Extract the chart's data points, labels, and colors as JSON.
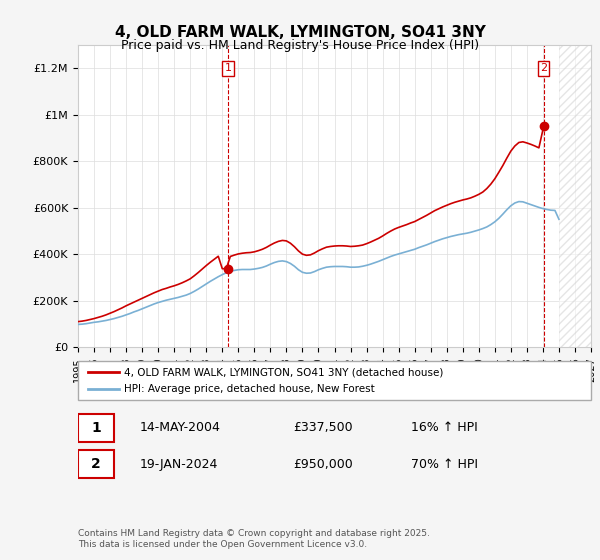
{
  "title": "4, OLD FARM WALK, LYMINGTON, SO41 3NY",
  "subtitle": "Price paid vs. HM Land Registry's House Price Index (HPI)",
  "x_start": 1995.0,
  "x_end": 2027.0,
  "ylim": [
    0,
    1300000
  ],
  "yticks": [
    0,
    200000,
    400000,
    600000,
    800000,
    1000000,
    1200000
  ],
  "ytick_labels": [
    "£0",
    "£200K",
    "£400K",
    "£600K",
    "£800K",
    "£1M",
    "£1.2M"
  ],
  "xticks": [
    1995,
    1996,
    1997,
    1998,
    1999,
    2000,
    2001,
    2002,
    2003,
    2004,
    2005,
    2006,
    2007,
    2008,
    2009,
    2010,
    2011,
    2012,
    2013,
    2014,
    2015,
    2016,
    2017,
    2018,
    2019,
    2020,
    2021,
    2022,
    2023,
    2024,
    2025,
    2026,
    2027
  ],
  "sale1_x": 2004.37,
  "sale1_y": 337500,
  "sale1_label": "1",
  "sale2_x": 2024.05,
  "sale2_y": 950000,
  "sale2_label": "2",
  "red_line_color": "#cc0000",
  "blue_line_color": "#7ab0d4",
  "background_color": "#f5f5f5",
  "plot_bg_color": "#ffffff",
  "grid_color": "#dddddd",
  "legend_label_red": "4, OLD FARM WALK, LYMINGTON, SO41 3NY (detached house)",
  "legend_label_blue": "HPI: Average price, detached house, New Forest",
  "info1_num": "1",
  "info1_date": "14-MAY-2004",
  "info1_price": "£337,500",
  "info1_hpi": "16% ↑ HPI",
  "info2_num": "2",
  "info2_date": "19-JAN-2024",
  "info2_price": "£950,000",
  "info2_hpi": "70% ↑ HPI",
  "footer": "Contains HM Land Registry data © Crown copyright and database right 2025.\nThis data is licensed under the Open Government Licence v3.0.",
  "hpi_years": [
    1995.0,
    1995.25,
    1995.5,
    1995.75,
    1996.0,
    1996.25,
    1996.5,
    1996.75,
    1997.0,
    1997.25,
    1997.5,
    1997.75,
    1998.0,
    1998.25,
    1998.5,
    1998.75,
    1999.0,
    1999.25,
    1999.5,
    1999.75,
    2000.0,
    2000.25,
    2000.5,
    2000.75,
    2001.0,
    2001.25,
    2001.5,
    2001.75,
    2002.0,
    2002.25,
    2002.5,
    2002.75,
    2003.0,
    2003.25,
    2003.5,
    2003.75,
    2004.0,
    2004.25,
    2004.5,
    2004.75,
    2005.0,
    2005.25,
    2005.5,
    2005.75,
    2006.0,
    2006.25,
    2006.5,
    2006.75,
    2007.0,
    2007.25,
    2007.5,
    2007.75,
    2008.0,
    2008.25,
    2008.5,
    2008.75,
    2009.0,
    2009.25,
    2009.5,
    2009.75,
    2010.0,
    2010.25,
    2010.5,
    2010.75,
    2011.0,
    2011.25,
    2011.5,
    2011.75,
    2012.0,
    2012.25,
    2012.5,
    2012.75,
    2013.0,
    2013.25,
    2013.5,
    2013.75,
    2014.0,
    2014.25,
    2014.5,
    2014.75,
    2015.0,
    2015.25,
    2015.5,
    2015.75,
    2016.0,
    2016.25,
    2016.5,
    2016.75,
    2017.0,
    2017.25,
    2017.5,
    2017.75,
    2018.0,
    2018.25,
    2018.5,
    2018.75,
    2019.0,
    2019.25,
    2019.5,
    2019.75,
    2020.0,
    2020.25,
    2020.5,
    2020.75,
    2021.0,
    2021.25,
    2021.5,
    2021.75,
    2022.0,
    2022.25,
    2022.5,
    2022.75,
    2023.0,
    2023.25,
    2023.5,
    2023.75,
    2024.0,
    2024.25,
    2024.5,
    2024.75,
    2025.0
  ],
  "hpi_values": [
    98000,
    99000,
    101000,
    104000,
    107000,
    109000,
    112000,
    115000,
    119000,
    123000,
    128000,
    133000,
    139000,
    145000,
    152000,
    158000,
    165000,
    172000,
    179000,
    186000,
    192000,
    197000,
    202000,
    206000,
    210000,
    214000,
    219000,
    224000,
    231000,
    240000,
    250000,
    261000,
    272000,
    283000,
    293000,
    303000,
    312000,
    320000,
    326000,
    330000,
    333000,
    334000,
    334000,
    334000,
    336000,
    339000,
    343000,
    349000,
    357000,
    364000,
    369000,
    371000,
    368000,
    360000,
    348000,
    333000,
    322000,
    318000,
    319000,
    325000,
    333000,
    339000,
    344000,
    346000,
    347000,
    347000,
    347000,
    346000,
    344000,
    344000,
    345000,
    348000,
    352000,
    357000,
    363000,
    369000,
    376000,
    383000,
    390000,
    396000,
    401000,
    406000,
    411000,
    416000,
    421000,
    428000,
    434000,
    440000,
    447000,
    454000,
    460000,
    466000,
    471000,
    476000,
    480000,
    484000,
    487000,
    490000,
    494000,
    499000,
    504000,
    510000,
    517000,
    527000,
    539000,
    554000,
    572000,
    591000,
    608000,
    620000,
    626000,
    625000,
    619000,
    613000,
    607000,
    601000,
    596000,
    592000,
    589000,
    588000,
    550000
  ],
  "red_years": [
    1995.0,
    1995.25,
    1995.5,
    1995.75,
    1996.0,
    1996.25,
    1996.5,
    1996.75,
    1997.0,
    1997.25,
    1997.5,
    1997.75,
    1998.0,
    1998.25,
    1998.5,
    1998.75,
    1999.0,
    1999.25,
    1999.5,
    1999.75,
    2000.0,
    2000.25,
    2000.5,
    2000.75,
    2001.0,
    2001.25,
    2001.5,
    2001.75,
    2002.0,
    2002.25,
    2002.5,
    2002.75,
    2003.0,
    2003.25,
    2003.5,
    2003.75,
    2004.0,
    2004.25,
    2004.5,
    2004.75,
    2005.0,
    2005.25,
    2005.5,
    2005.75,
    2006.0,
    2006.25,
    2006.5,
    2006.75,
    2007.0,
    2007.25,
    2007.5,
    2007.75,
    2008.0,
    2008.25,
    2008.5,
    2008.75,
    2009.0,
    2009.25,
    2009.5,
    2009.75,
    2010.0,
    2010.25,
    2010.5,
    2010.75,
    2011.0,
    2011.25,
    2011.5,
    2011.75,
    2012.0,
    2012.25,
    2012.5,
    2012.75,
    2013.0,
    2013.25,
    2013.5,
    2013.75,
    2014.0,
    2014.25,
    2014.5,
    2014.75,
    2015.0,
    2015.25,
    2015.5,
    2015.75,
    2016.0,
    2016.25,
    2016.5,
    2016.75,
    2017.0,
    2017.25,
    2017.5,
    2017.75,
    2018.0,
    2018.25,
    2018.5,
    2018.75,
    2019.0,
    2019.25,
    2019.5,
    2019.75,
    2020.0,
    2020.25,
    2020.5,
    2020.75,
    2021.0,
    2021.25,
    2021.5,
    2021.75,
    2022.0,
    2022.25,
    2022.5,
    2022.75,
    2023.0,
    2023.25,
    2023.5,
    2023.75,
    2024.05
  ],
  "red_values": [
    110000,
    112000,
    115000,
    119000,
    123000,
    128000,
    133000,
    139000,
    146000,
    153000,
    161000,
    169000,
    178000,
    186000,
    194000,
    202000,
    210000,
    218000,
    226000,
    234000,
    241000,
    248000,
    253000,
    259000,
    264000,
    270000,
    277000,
    285000,
    294000,
    307000,
    321000,
    336000,
    351000,
    365000,
    378000,
    391000,
    337500,
    337500,
    390000,
    396000,
    401000,
    404000,
    406000,
    407000,
    410000,
    415000,
    421000,
    429000,
    439000,
    448000,
    455000,
    459000,
    457000,
    447000,
    432000,
    414000,
    400000,
    395000,
    397000,
    405000,
    415000,
    423000,
    430000,
    433000,
    435000,
    436000,
    436000,
    435000,
    433000,
    434000,
    436000,
    439000,
    445000,
    452000,
    460000,
    468000,
    478000,
    489000,
    499000,
    508000,
    515000,
    521000,
    527000,
    534000,
    540000,
    549000,
    558000,
    567000,
    577000,
    587000,
    595000,
    603000,
    610000,
    617000,
    623000,
    628000,
    633000,
    637000,
    642000,
    649000,
    657000,
    667000,
    682000,
    701000,
    724000,
    752000,
    781000,
    813000,
    843000,
    865000,
    880000,
    883000,
    878000,
    872000,
    865000,
    857000,
    950000
  ]
}
